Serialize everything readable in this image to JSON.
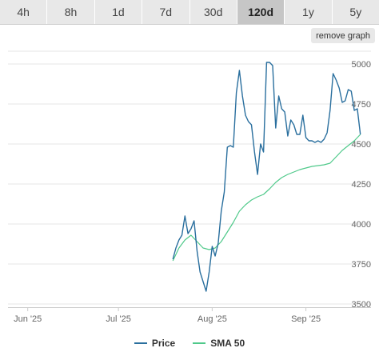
{
  "tabs": [
    {
      "label": "4h",
      "active": false
    },
    {
      "label": "8h",
      "active": false
    },
    {
      "label": "1d",
      "active": false
    },
    {
      "label": "7d",
      "active": false
    },
    {
      "label": "30d",
      "active": false
    },
    {
      "label": "120d",
      "active": true
    },
    {
      "label": "1y",
      "active": false
    },
    {
      "label": "5y",
      "active": false
    }
  ],
  "remove_graph_label": "remove graph",
  "colors": {
    "price": "#2a6f9e",
    "sma": "#4fc98a",
    "grid": "#e6e6e6",
    "axis_text": "#666666"
  },
  "chart_data": {
    "type": "line",
    "x_ticks": [
      "Jun '25",
      "Jul '25",
      "Aug '25",
      "Sep '25"
    ],
    "y_ticks": [
      3500,
      3750,
      4000,
      4250,
      4500,
      4750,
      5000
    ],
    "ylim": [
      3480,
      5080
    ],
    "xlim_days": [
      0,
      119
    ],
    "x_tick_days": [
      6,
      36,
      67,
      98
    ],
    "grid": true,
    "legend_position": "bottom",
    "series": [
      {
        "name": "Price",
        "color": "#2a6f9e",
        "points": [
          [
            54,
            3780
          ],
          [
            55,
            3850
          ],
          [
            56,
            3900
          ],
          [
            57,
            3930
          ],
          [
            58,
            4050
          ],
          [
            59,
            3940
          ],
          [
            60,
            3970
          ],
          [
            61,
            4020
          ],
          [
            62,
            3830
          ],
          [
            63,
            3700
          ],
          [
            64,
            3640
          ],
          [
            65,
            3580
          ],
          [
            66,
            3700
          ],
          [
            67,
            3860
          ],
          [
            68,
            3800
          ],
          [
            69,
            3880
          ],
          [
            70,
            4080
          ],
          [
            71,
            4200
          ],
          [
            72,
            4480
          ],
          [
            73,
            4490
          ],
          [
            74,
            4480
          ],
          [
            75,
            4820
          ],
          [
            76,
            4960
          ],
          [
            77,
            4800
          ],
          [
            78,
            4680
          ],
          [
            79,
            4640
          ],
          [
            80,
            4620
          ],
          [
            81,
            4450
          ],
          [
            82,
            4310
          ],
          [
            83,
            4500
          ],
          [
            84,
            4450
          ],
          [
            85,
            5010
          ],
          [
            86,
            5010
          ],
          [
            87,
            4990
          ],
          [
            88,
            4600
          ],
          [
            89,
            4800
          ],
          [
            90,
            4720
          ],
          [
            91,
            4700
          ],
          [
            92,
            4550
          ],
          [
            93,
            4650
          ],
          [
            94,
            4620
          ],
          [
            95,
            4560
          ],
          [
            96,
            4560
          ],
          [
            97,
            4680
          ],
          [
            98,
            4540
          ],
          [
            99,
            4520
          ],
          [
            100,
            4520
          ],
          [
            101,
            4510
          ],
          [
            102,
            4520
          ],
          [
            103,
            4510
          ],
          [
            104,
            4530
          ],
          [
            105,
            4570
          ],
          [
            106,
            4710
          ],
          [
            107,
            4940
          ],
          [
            108,
            4900
          ],
          [
            109,
            4850
          ],
          [
            110,
            4760
          ],
          [
            111,
            4770
          ],
          [
            112,
            4840
          ],
          [
            113,
            4830
          ],
          [
            114,
            4710
          ],
          [
            115,
            4720
          ],
          [
            116,
            4560
          ]
        ]
      },
      {
        "name": "SMA 50",
        "color": "#4fc98a",
        "points": [
          [
            54,
            3770
          ],
          [
            56,
            3850
          ],
          [
            58,
            3900
          ],
          [
            60,
            3930
          ],
          [
            62,
            3890
          ],
          [
            64,
            3850
          ],
          [
            66,
            3840
          ],
          [
            68,
            3850
          ],
          [
            70,
            3890
          ],
          [
            72,
            3950
          ],
          [
            74,
            4010
          ],
          [
            76,
            4080
          ],
          [
            78,
            4120
          ],
          [
            80,
            4150
          ],
          [
            82,
            4170
          ],
          [
            84,
            4185
          ],
          [
            86,
            4220
          ],
          [
            88,
            4260
          ],
          [
            90,
            4290
          ],
          [
            92,
            4310
          ],
          [
            94,
            4325
          ],
          [
            96,
            4340
          ],
          [
            98,
            4350
          ],
          [
            100,
            4360
          ],
          [
            102,
            4365
          ],
          [
            104,
            4370
          ],
          [
            106,
            4380
          ],
          [
            108,
            4420
          ],
          [
            110,
            4460
          ],
          [
            112,
            4490
          ],
          [
            114,
            4520
          ],
          [
            116,
            4560
          ]
        ]
      }
    ]
  }
}
